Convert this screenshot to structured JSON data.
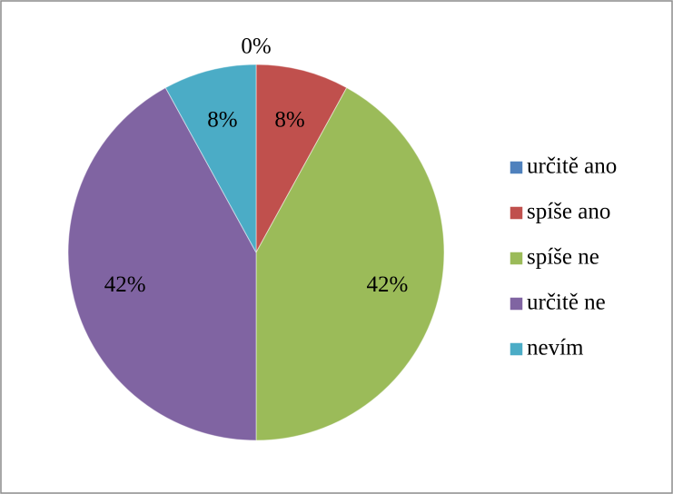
{
  "chart_data": {
    "type": "pie",
    "categories": [
      "určitě ano",
      "spíše ano",
      "spíše ne",
      "určitě ne",
      "nevím"
    ],
    "values": [
      0,
      8,
      42,
      42,
      8
    ],
    "value_labels": [
      "0%",
      "8%",
      "42%",
      "42%",
      "8%"
    ],
    "colors": [
      "#4f81bd",
      "#c0504d",
      "#9bbb59",
      "#8064a2",
      "#4bacc6"
    ],
    "legend": "right"
  }
}
